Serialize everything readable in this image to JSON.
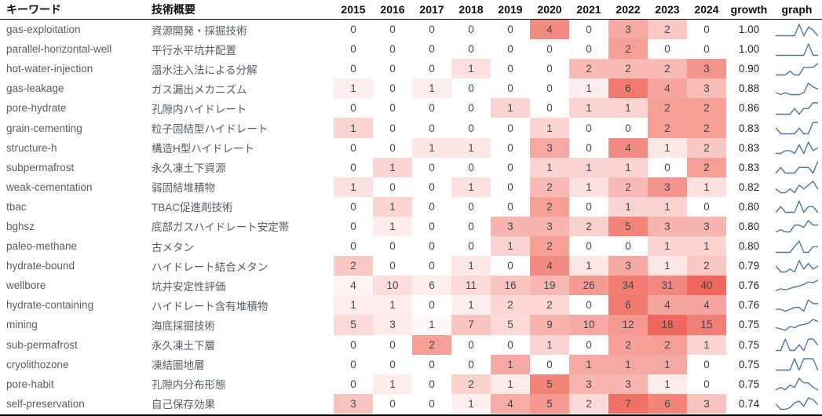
{
  "table": {
    "headers": {
      "keyword": "キーワード",
      "description": "技術概要",
      "growth": "growth",
      "graph": "graph"
    }
  },
  "colors": {
    "heat_low": "#ffffff",
    "heat_high": "#ee685d",
    "sparkline": "#4a77a8",
    "cell_text": "#3d4853",
    "header_text": "#0c0c0c",
    "rule": "#000000"
  },
  "chart_data": {
    "type": "heatmap",
    "title": "",
    "columns": [
      "2015",
      "2016",
      "2017",
      "2018",
      "2019",
      "2020",
      "2021",
      "2022",
      "2023",
      "2024"
    ],
    "value_columns_extra": [
      "growth",
      "graph"
    ],
    "layout": {
      "normalization": "per-row white to red",
      "sparkline": "line chart of yearly values per row",
      "grid": "off",
      "header_rule": "black line under header",
      "bottom_rule": "black line at bottom"
    },
    "rows": [
      {
        "keyword": "gas-exploitation",
        "description": "資源開発・採掘技術",
        "values": [
          0,
          0,
          0,
          0,
          0,
          4,
          0,
          3,
          2,
          0
        ],
        "growth": "1.00"
      },
      {
        "keyword": "parallel-horizontal-well",
        "description": "平行水平坑井配置",
        "values": [
          0,
          0,
          0,
          0,
          0,
          0,
          0,
          2,
          0,
          0
        ],
        "growth": "1.00"
      },
      {
        "keyword": "hot-water-injection",
        "description": "温水注入法による分解",
        "values": [
          0,
          0,
          0,
          1,
          0,
          0,
          2,
          2,
          2,
          3
        ],
        "growth": "0.90"
      },
      {
        "keyword": "gas-leakage",
        "description": "ガス漏出メカニズム",
        "values": [
          1,
          0,
          1,
          0,
          0,
          0,
          1,
          6,
          4,
          3
        ],
        "growth": "0.88"
      },
      {
        "keyword": "pore-hydrate",
        "description": "孔隙内ハイドレート",
        "values": [
          0,
          0,
          0,
          0,
          1,
          0,
          1,
          1,
          2,
          2
        ],
        "growth": "0.86"
      },
      {
        "keyword": "grain-cementing",
        "description": "粒子固結型ハイドレート",
        "values": [
          1,
          0,
          0,
          0,
          0,
          1,
          0,
          0,
          2,
          2
        ],
        "growth": "0.83"
      },
      {
        "keyword": "structure-h",
        "description": "構造H型ハイドレート",
        "values": [
          0,
          0,
          1,
          1,
          0,
          3,
          0,
          4,
          1,
          2
        ],
        "growth": "0.83"
      },
      {
        "keyword": "subpermafrost",
        "description": "永久凍土下資源",
        "values": [
          0,
          1,
          0,
          0,
          0,
          1,
          1,
          1,
          0,
          2
        ],
        "growth": "0.83"
      },
      {
        "keyword": "weak-cementation",
        "description": "弱固結堆積物",
        "values": [
          1,
          0,
          0,
          1,
          0,
          2,
          1,
          2,
          3,
          1
        ],
        "growth": "0.82"
      },
      {
        "keyword": "tbac",
        "description": "TBAC促進剤技術",
        "values": [
          0,
          1,
          0,
          0,
          0,
          2,
          0,
          1,
          1,
          0
        ],
        "growth": "0.80"
      },
      {
        "keyword": "bghsz",
        "description": "底部ガスハイドレート安定帯",
        "values": [
          0,
          1,
          0,
          0,
          3,
          3,
          2,
          5,
          3,
          3
        ],
        "growth": "0.80"
      },
      {
        "keyword": "paleo-methane",
        "description": "古メタン",
        "values": [
          0,
          0,
          0,
          0,
          1,
          2,
          0,
          0,
          1,
          1
        ],
        "growth": "0.80"
      },
      {
        "keyword": "hydrate-bound",
        "description": "ハイドレート結合メタン",
        "values": [
          2,
          0,
          0,
          1,
          0,
          4,
          1,
          3,
          1,
          2
        ],
        "growth": "0.79"
      },
      {
        "keyword": "wellbore",
        "description": "坑井安定性評価",
        "values": [
          4,
          10,
          6,
          11,
          16,
          19,
          26,
          34,
          31,
          40
        ],
        "growth": "0.76"
      },
      {
        "keyword": "hydrate-containing",
        "description": "ハイドレート含有堆積物",
        "values": [
          1,
          1,
          0,
          1,
          2,
          2,
          0,
          6,
          4,
          4
        ],
        "growth": "0.76"
      },
      {
        "keyword": "mining",
        "description": "海底採掘技術",
        "values": [
          5,
          3,
          1,
          7,
          5,
          9,
          10,
          12,
          18,
          15
        ],
        "growth": "0.75"
      },
      {
        "keyword": "sub-permafrost",
        "description": "永久凍土下層",
        "values": [
          0,
          0,
          2,
          0,
          0,
          1,
          0,
          2,
          2,
          1
        ],
        "growth": "0.75"
      },
      {
        "keyword": "cryolithozone",
        "description": "凍結圏地層",
        "values": [
          0,
          0,
          0,
          0,
          1,
          0,
          1,
          1,
          1,
          0
        ],
        "growth": "0.75"
      },
      {
        "keyword": "pore-habit",
        "description": "孔隙内分布形態",
        "values": [
          0,
          1,
          0,
          2,
          1,
          5,
          3,
          3,
          1,
          0
        ],
        "growth": "0.75"
      },
      {
        "keyword": "self-preservation",
        "description": "自己保存効果",
        "values": [
          3,
          0,
          0,
          1,
          4,
          5,
          2,
          7,
          6,
          3
        ],
        "growth": "0.74"
      }
    ]
  }
}
